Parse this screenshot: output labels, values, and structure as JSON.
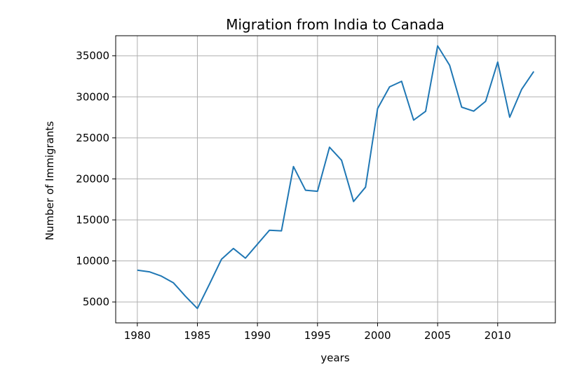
{
  "chart_data": {
    "type": "line",
    "title": "Migration from India to Canada",
    "xlabel": "years",
    "ylabel": "Number of Immigrants",
    "xlim": [
      1978.2,
      2014.8
    ],
    "ylim": [
      2450,
      37450
    ],
    "xticks": [
      1980,
      1985,
      1990,
      1995,
      2000,
      2005,
      2010
    ],
    "yticks": [
      5000,
      10000,
      15000,
      20000,
      25000,
      30000,
      35000
    ],
    "grid": true,
    "series": [
      {
        "color": "#1f77b4",
        "x": [
          1980,
          1981,
          1982,
          1983,
          1984,
          1985,
          1986,
          1987,
          1988,
          1989,
          1990,
          1991,
          1992,
          1993,
          1994,
          1995,
          1996,
          1997,
          1998,
          1999,
          2000,
          2001,
          2002,
          2003,
          2004,
          2005,
          2006,
          2007,
          2008,
          2009,
          2010,
          2011,
          2012,
          2013
        ],
        "values": [
          8880,
          8670,
          8150,
          7340,
          5700,
          4210,
          7150,
          10190,
          11520,
          10340,
          12040,
          13740,
          13670,
          21500,
          18620,
          18490,
          23860,
          22270,
          17240,
          18990,
          28570,
          31220,
          31890,
          27160,
          28240,
          36210,
          33850,
          28740,
          28260,
          29460,
          34240,
          27510,
          30930,
          33090
        ]
      }
    ]
  }
}
